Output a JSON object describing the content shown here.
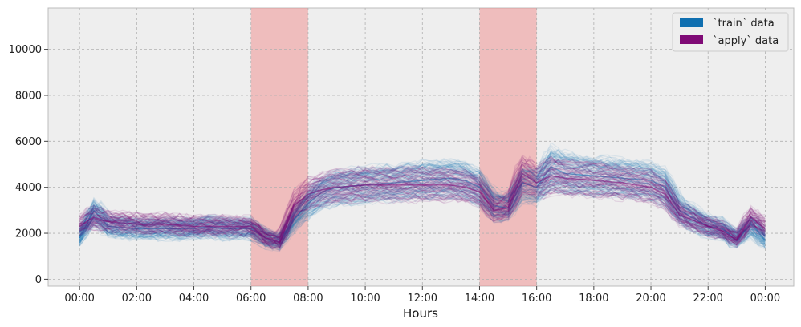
{
  "chart_data": {
    "type": "line",
    "title": "",
    "xlabel": "Hours",
    "ylabel": "",
    "ylim": [
      -300,
      11800
    ],
    "xlim_hours": [
      -1.1,
      25
    ],
    "grid": true,
    "y_ticks": [
      0,
      2000,
      4000,
      6000,
      8000,
      10000
    ],
    "x_ticks": [
      {
        "hour": 0,
        "label": "00:00"
      },
      {
        "hour": 2,
        "label": "02:00"
      },
      {
        "hour": 4,
        "label": "04:00"
      },
      {
        "hour": 6,
        "label": "06:00"
      },
      {
        "hour": 8,
        "label": "08:00"
      },
      {
        "hour": 10,
        "label": "10:00"
      },
      {
        "hour": 12,
        "label": "12:00"
      },
      {
        "hour": 14,
        "label": "14:00"
      },
      {
        "hour": 16,
        "label": "16:00"
      },
      {
        "hour": 18,
        "label": "18:00"
      },
      {
        "hour": 20,
        "label": "20:00"
      },
      {
        "hour": 22,
        "label": "22:00"
      },
      {
        "hour": 24,
        "label": "00:00"
      }
    ],
    "highlight_ranges": [
      {
        "start_hour": 6,
        "end_hour": 8,
        "color": "#f08080"
      },
      {
        "start_hour": 14,
        "end_hour": 16,
        "color": "#f08080"
      }
    ],
    "legend_position": "top-right",
    "series": [
      {
        "name": "`train` data",
        "color": "#0f6fb0",
        "x_hours": [
          0,
          0.5,
          1,
          2,
          3,
          4,
          4.5,
          5,
          6,
          6.5,
          7,
          7.5,
          8,
          8.5,
          9,
          10,
          11,
          12,
          13,
          13.5,
          14,
          14.5,
          15,
          15.5,
          16,
          16.5,
          17,
          18,
          19,
          20,
          20.5,
          21,
          22,
          22.5,
          23,
          23.5,
          24
        ],
        "values": [
          1800,
          3000,
          2300,
          2200,
          2200,
          2200,
          2300,
          2200,
          2200,
          1800,
          1600,
          2600,
          3300,
          3800,
          4000,
          4100,
          4200,
          4300,
          4400,
          4300,
          4000,
          3200,
          3100,
          4200,
          4000,
          4900,
          4600,
          4500,
          4400,
          4300,
          4000,
          3000,
          2300,
          2200,
          1700,
          2400,
          1700
        ]
      },
      {
        "name": "`apply` data",
        "color": "#7f0a76",
        "x_hours": [
          0,
          0.5,
          1,
          2,
          3,
          4,
          5,
          6,
          6.5,
          7,
          7.5,
          8,
          8.5,
          9,
          10,
          11,
          12,
          13,
          13.5,
          14,
          14.5,
          15,
          15.5,
          16,
          16.5,
          17,
          18,
          19,
          20,
          20.5,
          21,
          22,
          22.5,
          23,
          23.5,
          24
        ],
        "values": [
          2300,
          2700,
          2500,
          2400,
          2400,
          2300,
          2300,
          2300,
          1800,
          1600,
          3200,
          3700,
          3900,
          4000,
          4100,
          4100,
          4100,
          4100,
          4000,
          3800,
          3000,
          3100,
          4600,
          4200,
          4500,
          4400,
          4300,
          4200,
          4000,
          3700,
          2800,
          2300,
          2100,
          1700,
          2700,
          2200
        ]
      }
    ]
  }
}
